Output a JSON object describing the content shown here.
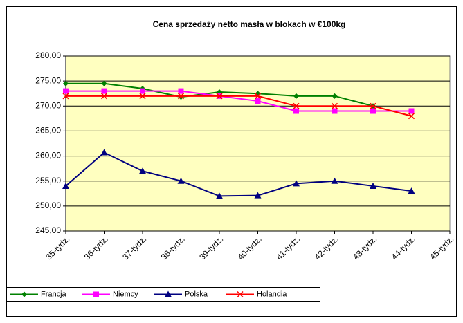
{
  "chart_data": {
    "type": "line",
    "title": "Cena sprzedaży netto masła w blokach w €100kg",
    "categories": [
      "35-tydz.",
      "36-tydz.",
      "37-tydz.",
      "38-tydz.",
      "39-tydz.",
      "40-tydz.",
      "41-tydz.",
      "42-tydz.",
      "43-tydz.",
      "44-tydz.",
      "45-tydz."
    ],
    "series": [
      {
        "name": "Francja",
        "color": "#008000",
        "marker": "diamond",
        "values": [
          274.5,
          274.5,
          273.5,
          271.8,
          272.8,
          272.5,
          272,
          272,
          270,
          null,
          null
        ]
      },
      {
        "name": "Niemcy",
        "color": "#ff00ff",
        "marker": "square",
        "values": [
          273,
          273,
          273,
          273,
          272,
          271,
          269,
          269,
          269,
          269,
          null
        ]
      },
      {
        "name": "Polska",
        "color": "#000080",
        "marker": "triangle",
        "values": [
          254,
          260.7,
          257,
          255,
          252,
          252.1,
          254.5,
          255,
          254,
          253,
          null
        ]
      },
      {
        "name": "Holandia",
        "color": "#ff0000",
        "marker": "x",
        "values": [
          272,
          272,
          272,
          272,
          272,
          272,
          270,
          270,
          270,
          268,
          null
        ]
      }
    ],
    "ylim": [
      245,
      280
    ],
    "yticks": [
      {
        "value": 245,
        "label": "245,00"
      },
      {
        "value": 250,
        "label": "250,00"
      },
      {
        "value": 255,
        "label": "255,00"
      },
      {
        "value": 260,
        "label": "260,00"
      },
      {
        "value": 265,
        "label": "265,00"
      },
      {
        "value": 270,
        "label": "270,00"
      },
      {
        "value": 275,
        "label": "275,00"
      },
      {
        "value": 280,
        "label": "280,00"
      }
    ],
    "grid": true,
    "legend": "bottom",
    "plot_background": "#ffffc0"
  }
}
